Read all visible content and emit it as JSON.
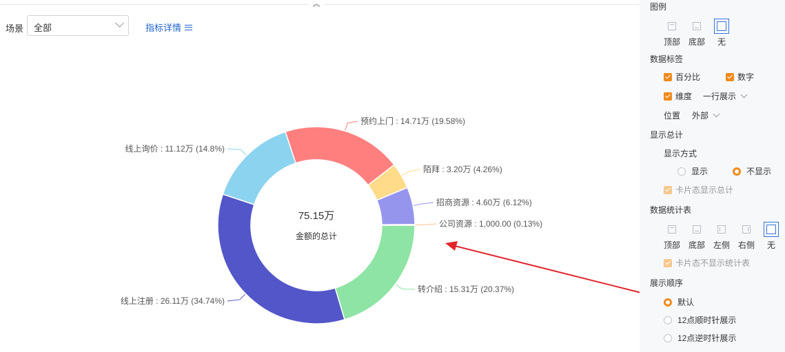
{
  "filter": {
    "scene_label": "场景",
    "scene_value": "全部",
    "detail_link": "指标详情"
  },
  "chart_data": {
    "type": "pie",
    "center_value": "75.15万",
    "center_label": "金额的总计",
    "slices": [
      {
        "name": "转介绍",
        "amount": "15.31万",
        "percent": 20.37,
        "color": "#8ee4a4"
      },
      {
        "name": "线上注册",
        "amount": "26.11万",
        "percent": 34.74,
        "color": "#5356c8"
      },
      {
        "name": "线上询价",
        "amount": "11.12万",
        "percent": 14.8,
        "color": "#8cd3f0"
      },
      {
        "name": "预约上门",
        "amount": "14.71万",
        "percent": 19.58,
        "color": "#ff7f7f"
      },
      {
        "name": "陌拜",
        "amount": "3.20万",
        "percent": 4.26,
        "color": "#ffdb8a"
      },
      {
        "name": "招商资源",
        "amount": "4.60万",
        "percent": 6.12,
        "color": "#9695ee"
      },
      {
        "name": "公司资源",
        "amount": "1,000.00",
        "percent": 0.13,
        "color": "#f5c48c"
      }
    ],
    "label_texts": [
      "转介绍 : 15.31万 (20.37%)",
      "线上注册 : 26.11万 (34.74%)",
      "线上询价 : 11.12万 (14.8%)",
      "预约上门 : 14.71万 (19.58%)",
      "陌拜 : 3.20万 (4.26%)",
      "招商资源 : 4.60万 (6.12%)",
      "公司资源 : 1,000.00 (0.13%)"
    ],
    "accent_arrow_color": "#e0262b"
  },
  "panel": {
    "legend": {
      "title": "图例",
      "options": [
        "顶部",
        "底部",
        "无"
      ],
      "selected": "无"
    },
    "data_labels": {
      "title": "数据标签",
      "percent": "百分比",
      "number": "数字",
      "dimension": "维度",
      "layout_value": "一行展示",
      "position_label": "位置",
      "position_value": "外部"
    },
    "show_total": {
      "title": "显示总计",
      "mode_label": "显示方式",
      "show": "显示",
      "hide": "不显示",
      "selected": "不显示",
      "card_checkbox": "卡片态显示总计"
    },
    "stats_table": {
      "title": "数据统计表",
      "options": [
        "顶部",
        "底部",
        "左侧",
        "右侧",
        "无"
      ],
      "selected": "无",
      "card_checkbox": "卡片态不显示统计表"
    },
    "order": {
      "title": "展示顺序",
      "options": [
        "默认",
        "12点顺时针展示",
        "12点逆时针展示"
      ],
      "selected": "默认"
    },
    "accent_color": "#f08a1d",
    "select_color": "#2f6fdc"
  }
}
